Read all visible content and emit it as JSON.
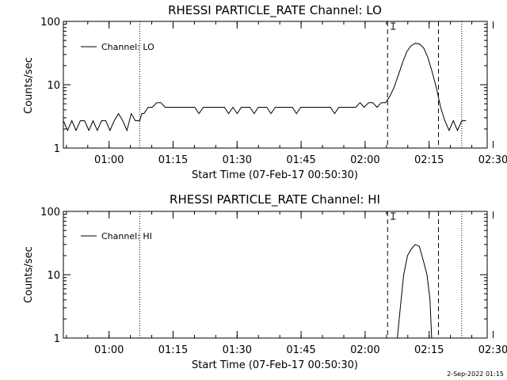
{
  "footer": {
    "date_stamp": "2-Sep-2022 01:15"
  },
  "chart_data": [
    {
      "type": "line",
      "title": "RHESSI PARTICLE_RATE Channel: LO",
      "xlabel": "Start Time (07-Feb-17 00:50:30)",
      "ylabel": "Counts/sec",
      "yscale": "log",
      "ylim": [
        1,
        100
      ],
      "xlim_minutes_after_start": [
        0,
        100
      ],
      "xtick_labels": [
        "01:00",
        "01:15",
        "01:30",
        "01:45",
        "02:00",
        "02:15",
        "02:30"
      ],
      "ytick_labels": [
        "1",
        "10",
        "100"
      ],
      "legend": {
        "label": "Channel: LO",
        "position": "top-left"
      },
      "grid": false,
      "vlines": [
        {
          "t": 18.0,
          "style": "dotted"
        },
        {
          "t": 76.5,
          "style": "dashed"
        },
        {
          "t": 88.5,
          "style": "dashed"
        },
        {
          "t": 94.0,
          "style": "dotted"
        }
      ],
      "marker": {
        "t": 77.8,
        "symbol": "I-beam"
      },
      "series": [
        {
          "name": "Channel: LO",
          "points": [
            [
              0,
              2.7
            ],
            [
              1,
              1.9
            ],
            [
              2,
              2.7
            ],
            [
              3,
              1.9
            ],
            [
              4,
              2.7
            ],
            [
              5,
              2.7
            ],
            [
              6,
              1.9
            ],
            [
              7,
              2.7
            ],
            [
              8,
              1.9
            ],
            [
              9,
              2.7
            ],
            [
              10,
              2.7
            ],
            [
              11,
              1.9
            ],
            [
              12,
              2.7
            ],
            [
              13,
              3.5
            ],
            [
              14,
              2.7
            ],
            [
              15,
              1.9
            ],
            [
              16,
              3.5
            ],
            [
              17,
              2.7
            ],
            [
              18,
              2.7
            ],
            [
              18.5,
              3.5
            ],
            [
              19,
              3.5
            ],
            [
              20,
              4.4
            ],
            [
              21,
              4.4
            ],
            [
              22,
              5.2
            ],
            [
              23,
              5.2
            ],
            [
              24,
              4.4
            ],
            [
              25,
              4.4
            ],
            [
              26,
              4.4
            ],
            [
              27,
              4.4
            ],
            [
              28,
              4.4
            ],
            [
              29,
              4.4
            ],
            [
              30,
              4.4
            ],
            [
              31,
              4.4
            ],
            [
              32,
              3.5
            ],
            [
              33,
              4.4
            ],
            [
              34,
              4.4
            ],
            [
              35,
              4.4
            ],
            [
              36,
              4.4
            ],
            [
              37,
              4.4
            ],
            [
              38,
              4.4
            ],
            [
              39,
              3.5
            ],
            [
              40,
              4.4
            ],
            [
              41,
              3.5
            ],
            [
              42,
              4.4
            ],
            [
              43,
              4.4
            ],
            [
              44,
              4.4
            ],
            [
              45,
              3.5
            ],
            [
              46,
              4.4
            ],
            [
              47,
              4.4
            ],
            [
              48,
              4.4
            ],
            [
              49,
              3.5
            ],
            [
              50,
              4.4
            ],
            [
              51,
              4.4
            ],
            [
              52,
              4.4
            ],
            [
              53,
              4.4
            ],
            [
              54,
              4.4
            ],
            [
              55,
              3.5
            ],
            [
              56,
              4.4
            ],
            [
              57,
              4.4
            ],
            [
              58,
              4.4
            ],
            [
              59,
              4.4
            ],
            [
              60,
              4.4
            ],
            [
              61,
              4.4
            ],
            [
              62,
              4.4
            ],
            [
              63,
              4.4
            ],
            [
              64,
              3.5
            ],
            [
              65,
              4.4
            ],
            [
              66,
              4.4
            ],
            [
              67,
              4.4
            ],
            [
              68,
              4.4
            ],
            [
              69,
              4.4
            ],
            [
              70,
              5.2
            ],
            [
              71,
              4.4
            ],
            [
              72,
              5.2
            ],
            [
              73,
              5.2
            ],
            [
              74,
              4.4
            ],
            [
              75,
              5.2
            ],
            [
              76,
              5.2
            ],
            [
              77,
              6.5
            ],
            [
              78,
              9.0
            ],
            [
              79,
              14.0
            ],
            [
              80,
              22.0
            ],
            [
              81,
              33.0
            ],
            [
              82,
              41.0
            ],
            [
              83,
              45.0
            ],
            [
              84,
              44.0
            ],
            [
              85,
              38.0
            ],
            [
              86,
              27.0
            ],
            [
              87,
              16.0
            ],
            [
              88,
              9.0
            ],
            [
              89,
              4.4
            ],
            [
              90,
              2.7
            ],
            [
              91,
              1.9
            ],
            [
              92,
              2.7
            ],
            [
              93,
              1.9
            ],
            [
              94,
              2.7
            ],
            [
              95,
              2.7
            ]
          ]
        }
      ]
    },
    {
      "type": "line",
      "title": "RHESSI PARTICLE_RATE Channel: HI",
      "xlabel": "Start Time (07-Feb-17 00:50:30)",
      "ylabel": "Counts/sec",
      "yscale": "log",
      "ylim": [
        1,
        100
      ],
      "xlim_minutes_after_start": [
        0,
        100
      ],
      "xtick_labels": [
        "01:00",
        "01:15",
        "01:30",
        "01:45",
        "02:00",
        "02:15",
        "02:30"
      ],
      "ytick_labels": [
        "1",
        "10",
        "100"
      ],
      "legend": {
        "label": "Channel: HI",
        "position": "top-left"
      },
      "grid": false,
      "vlines": [
        {
          "t": 18.0,
          "style": "dotted"
        },
        {
          "t": 76.5,
          "style": "dashed"
        },
        {
          "t": 88.5,
          "style": "dashed"
        },
        {
          "t": 94.0,
          "style": "dotted"
        }
      ],
      "marker": {
        "t": 77.8,
        "symbol": "I-beam"
      },
      "series": [
        {
          "name": "Channel: HI",
          "points": [
            [
              78.8,
              1.0
            ],
            [
              79.5,
              3.0
            ],
            [
              80.3,
              10.0
            ],
            [
              81.2,
              20.0
            ],
            [
              82.0,
              25.0
            ],
            [
              83.0,
              30.0
            ],
            [
              84.0,
              28.0
            ],
            [
              85.0,
              16.0
            ],
            [
              85.8,
              10.0
            ],
            [
              86.5,
              4.0
            ],
            [
              86.9,
              1.0
            ]
          ]
        }
      ]
    }
  ]
}
